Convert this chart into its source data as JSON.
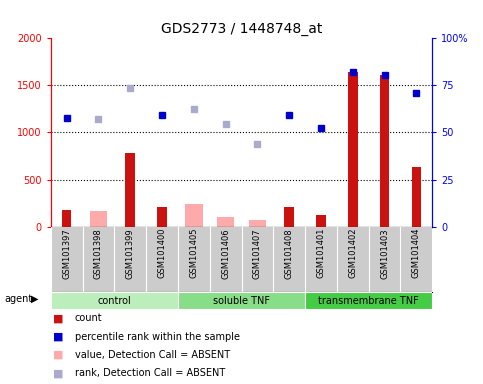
{
  "title": "GDS2773 / 1448748_at",
  "samples": [
    "GSM101397",
    "GSM101398",
    "GSM101399",
    "GSM101400",
    "GSM101405",
    "GSM101406",
    "GSM101407",
    "GSM101408",
    "GSM101401",
    "GSM101402",
    "GSM101403",
    "GSM101404"
  ],
  "groups": [
    {
      "label": "control",
      "start": 0,
      "end": 4
    },
    {
      "label": "soluble TNF",
      "start": 4,
      "end": 8
    },
    {
      "label": "transmembrane TNF",
      "start": 8,
      "end": 12
    }
  ],
  "count_present": [
    175,
    0,
    780,
    210,
    0,
    0,
    0,
    210,
    125,
    1640,
    1610,
    630
  ],
  "count_absent": [
    0,
    170,
    0,
    0,
    240,
    100,
    70,
    0,
    0,
    0,
    0,
    0
  ],
  "rank_present": [
    1150,
    0,
    0,
    1185,
    0,
    0,
    0,
    1190,
    1045,
    0,
    0,
    0
  ],
  "rank_absent": [
    0,
    1140,
    1475,
    0,
    1245,
    1085,
    880,
    0,
    0,
    0,
    0,
    0
  ],
  "blue_present": [
    1150,
    0,
    0,
    1185,
    0,
    0,
    0,
    1190,
    1045,
    1640,
    1610,
    1420
  ],
  "blue_absent": [
    0,
    1140,
    1475,
    0,
    1245,
    1085,
    880,
    0,
    0,
    0,
    0,
    0
  ],
  "ylim_left": [
    0,
    2000
  ],
  "ylim_right": [
    0,
    100
  ],
  "yticks_left": [
    0,
    500,
    1000,
    1500,
    2000
  ],
  "yticks_right": [
    0,
    25,
    50,
    75,
    100
  ],
  "ytick_labels_right": [
    "0",
    "25",
    "50",
    "75",
    "100%"
  ],
  "bar_color_present": "#cc1111",
  "bar_color_absent": "#ffaaaa",
  "dot_color_present": "#0000cc",
  "dot_color_absent": "#aaaacc",
  "group_colors": [
    "#bbeebb",
    "#88dd88",
    "#44cc44"
  ],
  "legend": [
    {
      "label": "count",
      "color": "#cc1111"
    },
    {
      "label": "percentile rank within the sample",
      "color": "#0000cc"
    },
    {
      "label": "value, Detection Call = ABSENT",
      "color": "#ffaaaa"
    },
    {
      "label": "rank, Detection Call = ABSENT",
      "color": "#aaaacc"
    }
  ]
}
